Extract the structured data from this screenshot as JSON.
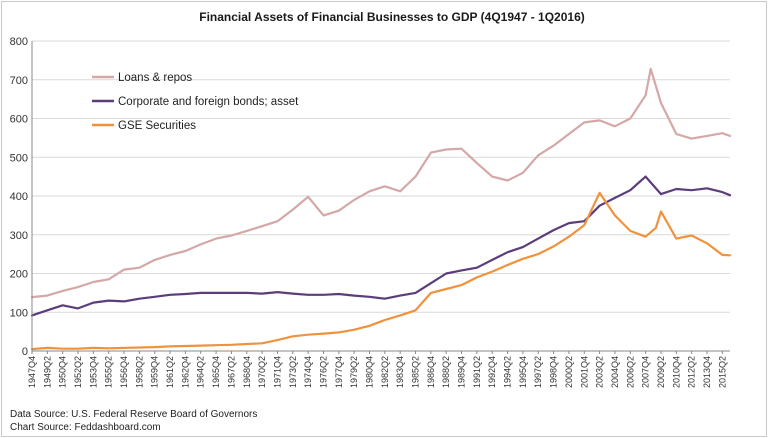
{
  "chart_data": {
    "type": "line",
    "title": "Financial Assets of Financial Businesses to GDP (4Q1947 - 1Q2016)",
    "ylim": [
      0,
      800
    ],
    "yticks": [
      "0",
      "100",
      "200",
      "300",
      "400",
      "500",
      "600",
      "700",
      "800"
    ],
    "grid": true,
    "legend_position": "top-left",
    "x_start_label": "1947Q4",
    "x_end_label": "2016Q1",
    "x_tick_labels": [
      "1947Q4",
      "1949Q2",
      "1950Q4",
      "1952Q2",
      "1953Q4",
      "1955Q2",
      "1956Q4",
      "1958Q2",
      "1959Q4",
      "1961Q2",
      "1962Q4",
      "1964Q2",
      "1965Q4",
      "1967Q2",
      "1968Q4",
      "1970Q2",
      "1971Q4",
      "1973Q2",
      "1974Q4",
      "1976Q2",
      "1977Q4",
      "1979Q2",
      "1980Q4",
      "1982Q2",
      "1983Q4",
      "1985Q2",
      "1986Q4",
      "1988Q2",
      "1989Q4",
      "1991Q2",
      "1992Q4",
      "1994Q2",
      "1995Q4",
      "1997Q2",
      "1998Q4",
      "2000Q2",
      "2001Q4",
      "2003Q2",
      "2004Q4",
      "2006Q2",
      "2007Q4",
      "2009Q2",
      "2010Q4",
      "2012Q2",
      "2013Q4",
      "2015Q2"
    ],
    "series": [
      {
        "name": "Loans & repos",
        "color": "#d4a8a6",
        "points": [
          [
            "1947Q4",
            139
          ],
          [
            "1949Q2",
            143
          ],
          [
            "1950Q4",
            155
          ],
          [
            "1952Q2",
            165
          ],
          [
            "1953Q4",
            178
          ],
          [
            "1955Q2",
            185
          ],
          [
            "1956Q4",
            210
          ],
          [
            "1958Q2",
            215
          ],
          [
            "1959Q4",
            235
          ],
          [
            "1961Q2",
            248
          ],
          [
            "1962Q4",
            258
          ],
          [
            "1964Q2",
            275
          ],
          [
            "1965Q4",
            290
          ],
          [
            "1967Q2",
            298
          ],
          [
            "1968Q4",
            310
          ],
          [
            "1970Q2",
            322
          ],
          [
            "1971Q4",
            335
          ],
          [
            "1973Q2",
            365
          ],
          [
            "1974Q4",
            398
          ],
          [
            "1976Q2",
            350
          ],
          [
            "1977Q4",
            362
          ],
          [
            "1979Q2",
            390
          ],
          [
            "1980Q4",
            412
          ],
          [
            "1982Q2",
            425
          ],
          [
            "1983Q4",
            412
          ],
          [
            "1985Q2",
            450
          ],
          [
            "1986Q4",
            512
          ],
          [
            "1988Q2",
            520
          ],
          [
            "1989Q4",
            522
          ],
          [
            "1991Q2",
            485
          ],
          [
            "1992Q4",
            450
          ],
          [
            "1994Q2",
            440
          ],
          [
            "1995Q4",
            460
          ],
          [
            "1997Q2",
            505
          ],
          [
            "1998Q4",
            530
          ],
          [
            "2000Q2",
            560
          ],
          [
            "2001Q4",
            590
          ],
          [
            "2003Q2",
            595
          ],
          [
            "2004Q4",
            580
          ],
          [
            "2006Q2",
            600
          ],
          [
            "2007Q4",
            660
          ],
          [
            "2008Q2",
            728
          ],
          [
            "2009Q2",
            640
          ],
          [
            "2010Q4",
            560
          ],
          [
            "2012Q2",
            548
          ],
          [
            "2013Q4",
            555
          ],
          [
            "2015Q2",
            562
          ],
          [
            "2016Q1",
            555
          ]
        ]
      },
      {
        "name": "Corporate and foreign bonds; asset",
        "color": "#5b3d7c",
        "points": [
          [
            "1947Q4",
            92
          ],
          [
            "1949Q2",
            105
          ],
          [
            "1950Q4",
            118
          ],
          [
            "1952Q2",
            110
          ],
          [
            "1953Q4",
            125
          ],
          [
            "1955Q2",
            130
          ],
          [
            "1956Q4",
            128
          ],
          [
            "1958Q2",
            135
          ],
          [
            "1959Q4",
            140
          ],
          [
            "1961Q2",
            145
          ],
          [
            "1962Q4",
            147
          ],
          [
            "1964Q2",
            150
          ],
          [
            "1965Q4",
            150
          ],
          [
            "1967Q2",
            150
          ],
          [
            "1968Q4",
            150
          ],
          [
            "1970Q2",
            148
          ],
          [
            "1971Q4",
            152
          ],
          [
            "1973Q2",
            148
          ],
          [
            "1974Q4",
            145
          ],
          [
            "1976Q2",
            145
          ],
          [
            "1977Q4",
            147
          ],
          [
            "1979Q2",
            143
          ],
          [
            "1980Q4",
            140
          ],
          [
            "1982Q2",
            135
          ],
          [
            "1983Q4",
            143
          ],
          [
            "1985Q2",
            150
          ],
          [
            "1986Q4",
            175
          ],
          [
            "1988Q2",
            200
          ],
          [
            "1989Q4",
            208
          ],
          [
            "1991Q2",
            215
          ],
          [
            "1992Q4",
            235
          ],
          [
            "1994Q2",
            255
          ],
          [
            "1995Q4",
            268
          ],
          [
            "1997Q2",
            290
          ],
          [
            "1998Q4",
            312
          ],
          [
            "2000Q2",
            330
          ],
          [
            "2001Q4",
            335
          ],
          [
            "2003Q2",
            375
          ],
          [
            "2004Q4",
            395
          ],
          [
            "2006Q2",
            415
          ],
          [
            "2007Q4",
            450
          ],
          [
            "2009Q2",
            405
          ],
          [
            "2010Q4",
            418
          ],
          [
            "2012Q2",
            415
          ],
          [
            "2013Q4",
            420
          ],
          [
            "2015Q2",
            410
          ],
          [
            "2016Q1",
            402
          ]
        ]
      },
      {
        "name": "GSE Securities",
        "color": "#f0923c",
        "points": [
          [
            "1947Q4",
            5
          ],
          [
            "1949Q2",
            8
          ],
          [
            "1950Q4",
            6
          ],
          [
            "1952Q2",
            6
          ],
          [
            "1953Q4",
            8
          ],
          [
            "1955Q2",
            7
          ],
          [
            "1956Q4",
            8
          ],
          [
            "1958Q2",
            9
          ],
          [
            "1959Q4",
            10
          ],
          [
            "1961Q2",
            12
          ],
          [
            "1962Q4",
            13
          ],
          [
            "1964Q2",
            14
          ],
          [
            "1965Q4",
            15
          ],
          [
            "1967Q2",
            16
          ],
          [
            "1968Q4",
            18
          ],
          [
            "1970Q2",
            20
          ],
          [
            "1971Q4",
            28
          ],
          [
            "1973Q2",
            38
          ],
          [
            "1974Q4",
            42
          ],
          [
            "1976Q2",
            45
          ],
          [
            "1977Q4",
            48
          ],
          [
            "1979Q2",
            55
          ],
          [
            "1980Q4",
            65
          ],
          [
            "1982Q2",
            80
          ],
          [
            "1983Q4",
            92
          ],
          [
            "1985Q2",
            105
          ],
          [
            "1986Q4",
            150
          ],
          [
            "1988Q2",
            160
          ],
          [
            "1989Q4",
            170
          ],
          [
            "1991Q2",
            190
          ],
          [
            "1992Q4",
            205
          ],
          [
            "1994Q2",
            222
          ],
          [
            "1995Q4",
            238
          ],
          [
            "1997Q2",
            250
          ],
          [
            "1998Q4",
            270
          ],
          [
            "2000Q2",
            295
          ],
          [
            "2001Q4",
            325
          ],
          [
            "2003Q2",
            408
          ],
          [
            "2004Q4",
            350
          ],
          [
            "2006Q2",
            310
          ],
          [
            "2007Q4",
            295
          ],
          [
            "2008Q4",
            318
          ],
          [
            "2009Q2",
            360
          ],
          [
            "2010Q4",
            290
          ],
          [
            "2012Q2",
            298
          ],
          [
            "2013Q4",
            278
          ],
          [
            "2015Q2",
            248
          ],
          [
            "2016Q1",
            247
          ]
        ]
      }
    ]
  },
  "footer": {
    "data_source": "Data Source: U.S. Federal Reserve Board of Governors",
    "chart_source": "Chart Source: Feddashboard.com"
  }
}
